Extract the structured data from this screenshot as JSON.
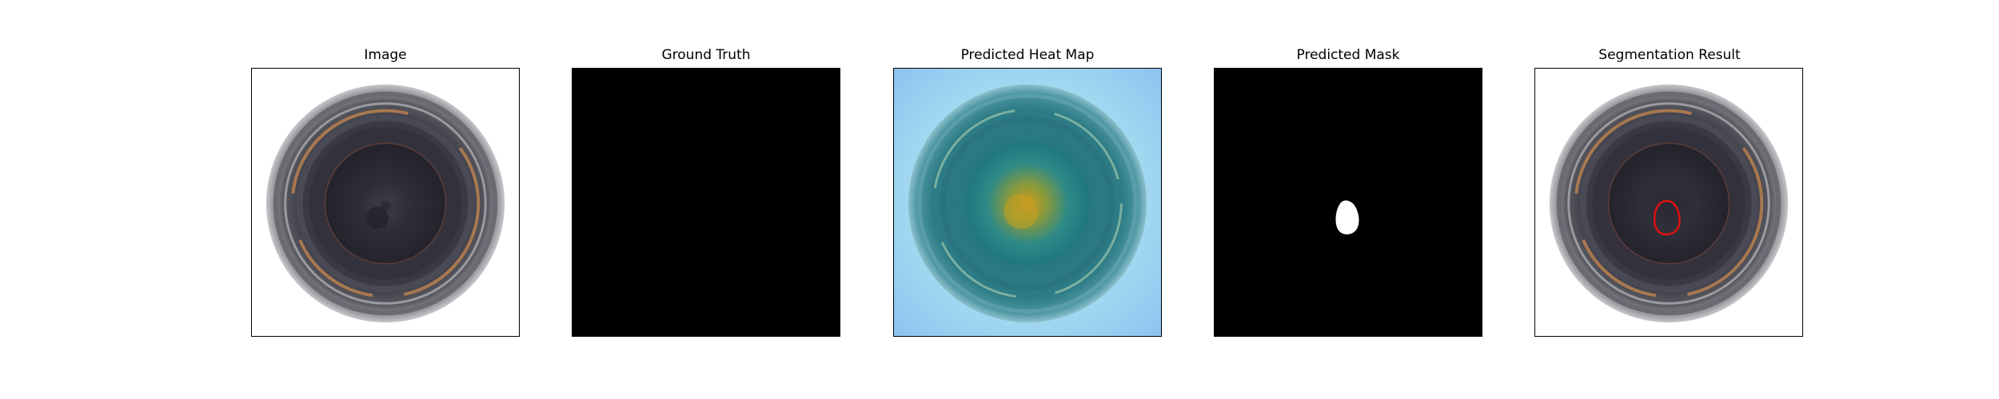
{
  "panels": [
    {
      "title": "Image"
    },
    {
      "title": "Ground Truth"
    },
    {
      "title": "Predicted Heat Map"
    },
    {
      "title": "Predicted Mask"
    },
    {
      "title": "Segmentation Result"
    }
  ],
  "colors": {
    "background": "#ffffff",
    "frame": "#000000",
    "mask_background": "#000000",
    "mask_foreground": "#ffffff",
    "segmentation_contour": "#e01010"
  }
}
